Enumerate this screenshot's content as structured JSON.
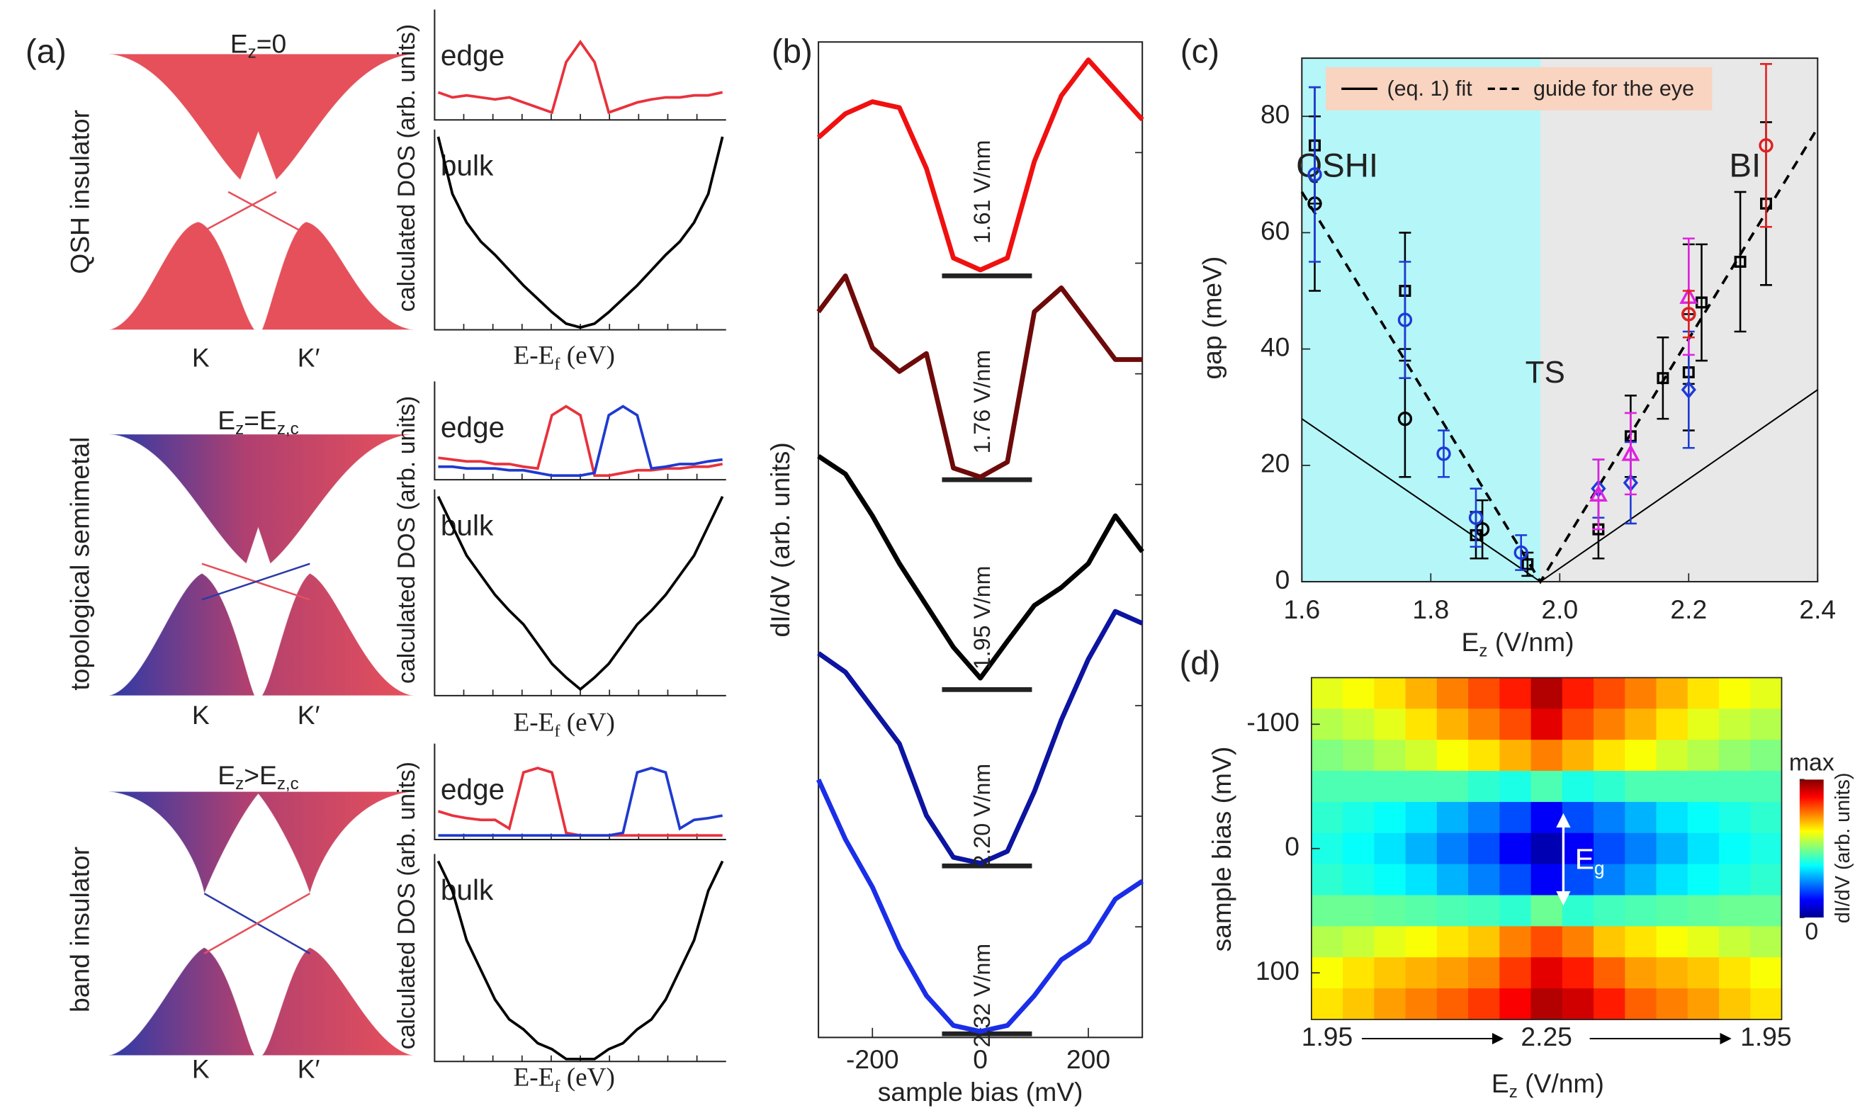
{
  "panel_labels": [
    "(a)",
    "(b)",
    "(c)",
    "(d)"
  ],
  "chart_data": [
    {
      "type": "dos",
      "band_title": [
        "E",
        "z",
        "=0"
      ],
      "side_label": "QSH insulator",
      "k_labels": [
        "K",
        "K′"
      ],
      "ylabel": "calculated DOS (arb. units)",
      "xlabel": [
        "E-E",
        "f",
        " (eV)"
      ],
      "edge": {
        "label": "edge",
        "ylim": [
          0,
          1
        ],
        "series": [
          {
            "color": "#e8323c",
            "values": [
              0.25,
              0.2,
              0.22,
              0.2,
              0.18,
              0.2,
              0.15,
              0.1,
              0.05,
              0.55,
              0.75,
              0.55,
              0.05,
              0.1,
              0.15,
              0.18,
              0.2,
              0.2,
              0.22,
              0.22,
              0.25
            ]
          }
        ]
      },
      "bulk": {
        "label": "bulk",
        "ylim": [
          0,
          1
        ],
        "series": [
          {
            "color": "#000000",
            "values": [
              1.0,
              0.7,
              0.55,
              0.45,
              0.38,
              0.3,
              0.22,
              0.15,
              0.08,
              0.02,
              0,
              0.02,
              0.08,
              0.15,
              0.22,
              0.3,
              0.38,
              0.45,
              0.55,
              0.7,
              1.0
            ]
          }
        ]
      }
    },
    {
      "type": "dos",
      "band_title": [
        "E",
        "z",
        "=E",
        "z,c"
      ],
      "side_label": "topological semimetal",
      "k_labels": [
        "K",
        "K′"
      ],
      "ylabel": "calculated DOS (arb. units)",
      "xlabel": [
        "E-E",
        "f",
        " (eV)"
      ],
      "edge": {
        "label": "edge",
        "ylim": [
          0,
          1
        ],
        "series": [
          {
            "color": "#e8323c",
            "values": [
              0.22,
              0.2,
              0.18,
              0.18,
              0.15,
              0.15,
              0.12,
              0.1,
              0.7,
              0.8,
              0.7,
              0.02,
              0.02,
              0.05,
              0.08,
              0.08,
              0.1,
              0.1,
              0.12,
              0.12,
              0.15
            ]
          },
          {
            "color": "#1f3ad0",
            "values": [
              0.12,
              0.12,
              0.1,
              0.1,
              0.1,
              0.08,
              0.08,
              0.05,
              0.02,
              0.02,
              0.02,
              0.05,
              0.7,
              0.8,
              0.7,
              0.1,
              0.12,
              0.15,
              0.15,
              0.18,
              0.2
            ]
          }
        ]
      },
      "bulk": {
        "label": "bulk",
        "ylim": [
          0,
          1
        ],
        "series": [
          {
            "color": "#000000",
            "values": [
              1.0,
              0.85,
              0.7,
              0.6,
              0.5,
              0.42,
              0.35,
              0.25,
              0.15,
              0.08,
              0.02,
              0.08,
              0.15,
              0.25,
              0.35,
              0.42,
              0.5,
              0.6,
              0.7,
              0.85,
              1.0
            ]
          }
        ]
      }
    },
    {
      "type": "dos",
      "band_title": [
        "E",
        "z",
        ">E",
        "z,c"
      ],
      "side_label": "band insulator",
      "k_labels": [
        "K",
        "K′"
      ],
      "ylabel": "calculated DOS (arb. units)",
      "xlabel": [
        "E-E",
        "f",
        " (eV)"
      ],
      "edge": {
        "label": "edge",
        "ylim": [
          0,
          1
        ],
        "series": [
          {
            "color": "#e8323c",
            "values": [
              0.3,
              0.25,
              0.22,
              0.2,
              0.2,
              0.1,
              0.75,
              0.8,
              0.75,
              0.05,
              0.02,
              0.02,
              0.02,
              0.02,
              0.02,
              0.02,
              0.02,
              0.02,
              0.02,
              0.02,
              0.02
            ]
          },
          {
            "color": "#1f3ad0",
            "values": [
              0.02,
              0.02,
              0.02,
              0.02,
              0.02,
              0.02,
              0.02,
              0.02,
              0.02,
              0.02,
              0.02,
              0.02,
              0.02,
              0.05,
              0.75,
              0.8,
              0.75,
              0.1,
              0.2,
              0.22,
              0.25
            ]
          }
        ]
      },
      "bulk": {
        "label": "bulk",
        "ylim": [
          0,
          1
        ],
        "series": [
          {
            "color": "#000000",
            "values": [
              1.0,
              0.85,
              0.6,
              0.45,
              0.3,
              0.2,
              0.15,
              0.08,
              0.05,
              0,
              0,
              0,
              0.05,
              0.08,
              0.15,
              0.2,
              0.3,
              0.45,
              0.6,
              0.85,
              1.0
            ]
          }
        ]
      }
    },
    {
      "type": "line",
      "ylabel": "dI/dV (arb. units)",
      "xlabel": "sample bias (mV)",
      "xlim": [
        -300,
        300
      ],
      "xticks": [
        -200,
        0,
        200
      ],
      "ylim": [
        0,
        10
      ],
      "x": [
        -300,
        -250,
        -200,
        -150,
        -100,
        -50,
        0,
        50,
        100,
        150,
        200,
        250,
        300
      ],
      "series": [
        {
          "name": "1.61 V/nm",
          "color": "#f01010",
          "values": [
            9.04,
            9.28,
            9.4,
            9.34,
            8.73,
            7.83,
            7.71,
            7.83,
            8.8,
            9.46,
            9.82,
            9.52,
            9.22
          ]
        },
        {
          "name": "1.76 V/nm",
          "color": "#6e0a0a",
          "values": [
            7.29,
            7.65,
            6.93,
            6.69,
            6.87,
            5.72,
            5.63,
            5.78,
            7.29,
            7.53,
            7.17,
            6.81,
            6.81
          ]
        },
        {
          "name": "1.95 V/nm",
          "color": "#000000",
          "values": [
            5.84,
            5.66,
            5.24,
            4.76,
            4.34,
            3.92,
            3.61,
            3.98,
            4.34,
            4.52,
            4.76,
            5.24,
            4.88
          ]
        },
        {
          "name": "2.20 V/nm",
          "color": "#0c14a0",
          "values": [
            3.86,
            3.67,
            3.31,
            2.95,
            2.23,
            1.81,
            1.75,
            1.87,
            2.47,
            3.19,
            3.8,
            4.28,
            4.16
          ]
        },
        {
          "name": "2.32 V/nm",
          "color": "#1a2ee8",
          "values": [
            2.59,
            1.99,
            1.51,
            0.9,
            0.42,
            0.12,
            0.06,
            0.12,
            0.42,
            0.78,
            0.96,
            1.39,
            1.57
          ]
        }
      ]
    },
    {
      "type": "scatter",
      "ylabel": "gap (meV)",
      "xlabel": [
        "E",
        "z",
        " (V/nm)"
      ],
      "xlim": [
        1.6,
        2.4
      ],
      "xticks": [
        1.6,
        1.8,
        {
          "value": 2,
          "label": "2.0"
        },
        2.2,
        2.4
      ],
      "ylim": [
        0,
        90
      ],
      "yticks": [
        0,
        20,
        40,
        60,
        80
      ],
      "regions": [
        {
          "label": "QSHI",
          "xlim": [
            1.6,
            1.97
          ],
          "color": "#b5f6f8"
        },
        {
          "label": "BI",
          "xlim": [
            1.97,
            2.4
          ],
          "color": "#e8e8e8"
        }
      ],
      "annotation": {
        "text": "TS",
        "x": 1.97
      },
      "legend_color": "#f9d4c0",
      "lines": [
        {
          "name": "(eq. 1) fit",
          "dash": false,
          "color": "#000000",
          "x": [
            1.6,
            1.97,
            2.4
          ],
          "values": [
            28,
            0,
            33
          ]
        },
        {
          "name": "guide for the eye",
          "dash": true,
          "color": "#000000",
          "x": [
            1.6,
            1.97,
            2.4
          ],
          "values": [
            67,
            0,
            78
          ]
        }
      ],
      "series": [
        {
          "marker": "square",
          "color": "#000000",
          "x": [
            1.62,
            1.76,
            1.87,
            1.95,
            2.06,
            2.11,
            2.16,
            2.2,
            2.22,
            2.28,
            2.32
          ],
          "values": [
            75,
            50,
            8,
            3,
            9,
            25,
            35,
            36,
            48,
            55,
            65
          ],
          "errors": [
            10,
            10,
            4,
            2,
            5,
            7,
            7,
            10,
            10,
            12,
            14
          ]
        },
        {
          "marker": "circle",
          "color": "#000000",
          "x": [
            1.62,
            1.76,
            1.88,
            2.2
          ],
          "values": [
            65,
            28,
            9,
            46
          ],
          "errors": [
            15,
            10,
            5,
            12
          ]
        },
        {
          "marker": "circle",
          "color": "#1e3ad8",
          "x": [
            1.62,
            1.76,
            1.82,
            1.87,
            1.94
          ],
          "values": [
            70,
            45,
            22,
            11,
            5
          ],
          "errors": [
            15,
            10,
            4,
            5,
            3
          ]
        },
        {
          "marker": "diamond",
          "color": "#1e3ad8",
          "x": [
            2.06,
            2.11,
            2.2
          ],
          "values": [
            16,
            17,
            33
          ],
          "errors": [
            5,
            7,
            10
          ]
        },
        {
          "marker": "triangle",
          "color": "#e020e0",
          "x": [
            2.06,
            2.11,
            2.2
          ],
          "values": [
            15,
            22,
            49
          ],
          "errors": [
            6,
            7,
            10
          ]
        },
        {
          "marker": "circle",
          "color": "#e02020",
          "x": [
            2.2,
            2.32
          ],
          "values": [
            46,
            75
          ],
          "errors": [
            4,
            14
          ]
        }
      ]
    },
    {
      "type": "heatmap",
      "ylabel": "sample bias (mV)",
      "xlabel": [
        "E",
        "z",
        " (V/nm)"
      ],
      "ylim": [
        -137.5,
        137.5
      ],
      "yticks": [
        -100,
        0,
        100
      ],
      "categories": [
        "1.95",
        null,
        null,
        null,
        null,
        null,
        null,
        "2.25",
        null,
        null,
        null,
        null,
        null,
        null,
        "1.95"
      ],
      "y": [
        -125,
        -100,
        -75,
        -50,
        -25,
        0,
        25,
        50,
        75,
        100,
        125
      ],
      "z": [
        [
          0.6,
          0.62,
          0.65,
          0.7,
          0.75,
          0.8,
          0.85,
          0.95,
          0.85,
          0.8,
          0.75,
          0.7,
          0.65,
          0.62,
          0.6
        ],
        [
          0.55,
          0.57,
          0.6,
          0.65,
          0.7,
          0.75,
          0.8,
          0.9,
          0.8,
          0.75,
          0.7,
          0.65,
          0.6,
          0.57,
          0.55
        ],
        [
          0.5,
          0.52,
          0.55,
          0.58,
          0.62,
          0.65,
          0.7,
          0.75,
          0.7,
          0.65,
          0.62,
          0.58,
          0.55,
          0.52,
          0.5
        ],
        [
          0.45,
          0.45,
          0.45,
          0.45,
          0.45,
          0.42,
          0.4,
          0.45,
          0.4,
          0.42,
          0.45,
          0.45,
          0.45,
          0.45,
          0.45
        ],
        [
          0.42,
          0.4,
          0.38,
          0.35,
          0.3,
          0.25,
          0.2,
          0.12,
          0.2,
          0.25,
          0.3,
          0.35,
          0.38,
          0.4,
          0.42
        ],
        [
          0.4,
          0.38,
          0.35,
          0.3,
          0.25,
          0.2,
          0.12,
          0.05,
          0.12,
          0.2,
          0.25,
          0.3,
          0.35,
          0.38,
          0.4
        ],
        [
          0.42,
          0.4,
          0.38,
          0.35,
          0.3,
          0.25,
          0.2,
          0.12,
          0.2,
          0.25,
          0.3,
          0.35,
          0.38,
          0.4,
          0.42
        ],
        [
          0.48,
          0.48,
          0.47,
          0.46,
          0.45,
          0.44,
          0.42,
          0.48,
          0.42,
          0.44,
          0.45,
          0.46,
          0.47,
          0.48,
          0.48
        ],
        [
          0.55,
          0.57,
          0.6,
          0.62,
          0.65,
          0.68,
          0.75,
          0.8,
          0.75,
          0.68,
          0.65,
          0.62,
          0.6,
          0.57,
          0.55
        ],
        [
          0.62,
          0.65,
          0.68,
          0.7,
          0.72,
          0.75,
          0.82,
          0.9,
          0.85,
          0.78,
          0.72,
          0.7,
          0.68,
          0.65,
          0.62
        ],
        [
          0.65,
          0.68,
          0.72,
          0.75,
          0.78,
          0.82,
          0.88,
          0.95,
          0.92,
          0.85,
          0.78,
          0.75,
          0.72,
          0.68,
          0.65
        ]
      ],
      "colorbar": {
        "ticks": [
          {
            "value": 1,
            "label": "max"
          },
          0
        ],
        "label": "dI/dV (arb. units)"
      },
      "annotation": [
        "E",
        "g"
      ]
    }
  ]
}
